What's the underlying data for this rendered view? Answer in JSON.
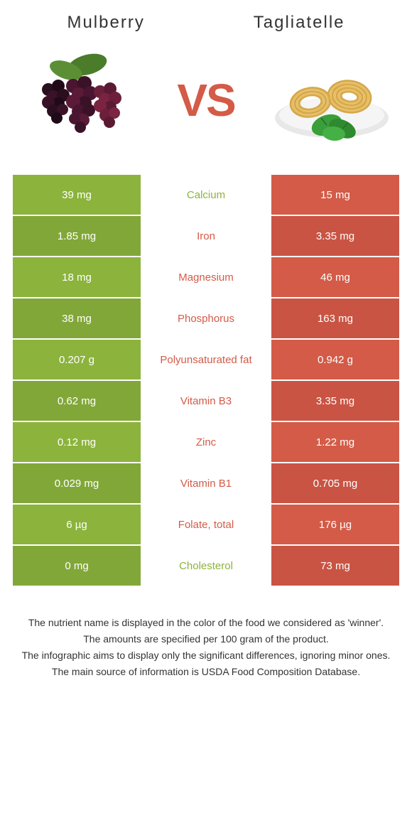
{
  "foods": {
    "left": {
      "name": "Mulberry",
      "color": "#8cb33c"
    },
    "right": {
      "name": "Tagliatelle",
      "color": "#d35b47"
    }
  },
  "vs_label": "VS",
  "rows": [
    {
      "left": "39 mg",
      "label": "Calcium",
      "right": "15 mg",
      "winner": "left"
    },
    {
      "left": "1.85 mg",
      "label": "Iron",
      "right": "3.35 mg",
      "winner": "right"
    },
    {
      "left": "18 mg",
      "label": "Magnesium",
      "right": "46 mg",
      "winner": "right"
    },
    {
      "left": "38 mg",
      "label": "Phosphorus",
      "right": "163 mg",
      "winner": "right"
    },
    {
      "left": "0.207 g",
      "label": "Polyunsaturated fat",
      "right": "0.942 g",
      "winner": "right"
    },
    {
      "left": "0.62 mg",
      "label": "Vitamin B3",
      "right": "3.35 mg",
      "winner": "right"
    },
    {
      "left": "0.12 mg",
      "label": "Zinc",
      "right": "1.22 mg",
      "winner": "right"
    },
    {
      "left": "0.029 mg",
      "label": "Vitamin B1",
      "right": "0.705 mg",
      "winner": "right"
    },
    {
      "left": "6 µg",
      "label": "Folate, total",
      "right": "176 µg",
      "winner": "right"
    },
    {
      "left": "0 mg",
      "label": "Cholesterol",
      "right": "73 mg",
      "winner": "left"
    }
  ],
  "alt_shades": {
    "left": [
      "#8cb33c",
      "#82a739"
    ],
    "right": [
      "#d35b47",
      "#c95443"
    ]
  },
  "footer_lines": [
    "The nutrient name is displayed in the color of the food we considered as 'winner'.",
    "The amounts are specified per 100 gram of the product.",
    "The infographic aims to display only the significant differences, ignoring minor ones.",
    "The main source of information is USDA Food Composition Database."
  ]
}
